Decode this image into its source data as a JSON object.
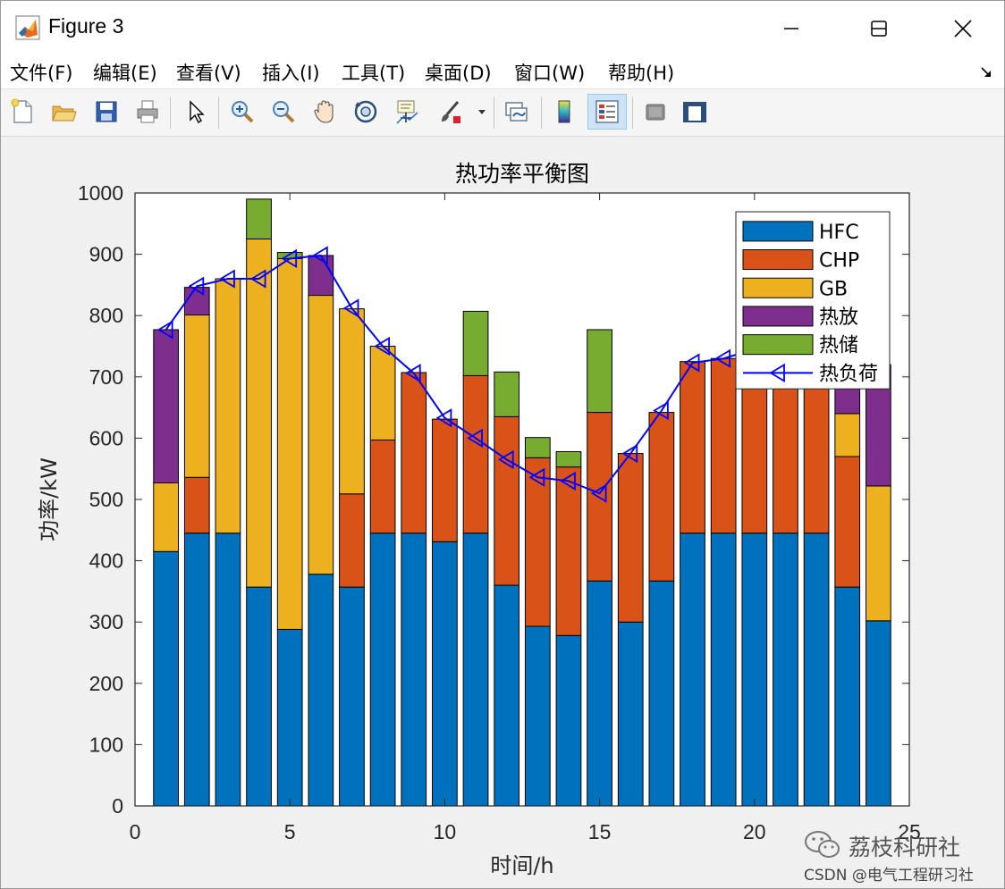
{
  "window": {
    "title": "Figure 3",
    "minimize_icon": "minimize-icon",
    "maximize_icon": "maximize-icon",
    "close_icon": "close-icon"
  },
  "menu": [
    "文件(F)",
    "编辑(E)",
    "查看(V)",
    "插入(I)",
    "工具(T)",
    "桌面(D)",
    "窗口(W)",
    "帮助(H)"
  ],
  "toolbar": {
    "icons": [
      "new-figure-icon",
      "open-file-icon",
      "save-icon",
      "print-icon",
      "pointer-icon",
      "zoom-in-icon",
      "zoom-out-icon",
      "pan-hand-icon",
      "rotate-3d-icon",
      "data-cursor-icon",
      "brush-icon",
      "link-plot-icon",
      "colorbar-icon",
      "legend-icon",
      "hide-plot-tools-icon",
      "show-plot-tools-icon"
    ],
    "active": "legend-icon"
  },
  "chart_data": {
    "type": "bar",
    "stacked": true,
    "title": "热功率平衡图",
    "xlabel": "时间/h",
    "ylabel": "功率/kW",
    "xlim": [
      0,
      25
    ],
    "ylim": [
      0,
      1000
    ],
    "xticks": [
      0,
      5,
      10,
      15,
      20,
      25
    ],
    "yticks": [
      0,
      100,
      200,
      300,
      400,
      500,
      600,
      700,
      800,
      900,
      1000
    ],
    "x": [
      1,
      2,
      3,
      4,
      5,
      6,
      7,
      8,
      9,
      10,
      11,
      12,
      13,
      14,
      15,
      16,
      17,
      18,
      19,
      20,
      21,
      22,
      23,
      24
    ],
    "series": [
      {
        "name": "HFC",
        "color": "#0072BD",
        "values": [
          415,
          445,
          445,
          357,
          288,
          378,
          357,
          445,
          445,
          431,
          445,
          360,
          293,
          278,
          367,
          300,
          367,
          445,
          445,
          445,
          445,
          445,
          357,
          302
        ]
      },
      {
        "name": "CHP",
        "color": "#D95319",
        "values": [
          0,
          91,
          0,
          0,
          0,
          0,
          152,
          152,
          262,
          200,
          257,
          275,
          275,
          275,
          275,
          275,
          275,
          280,
          285,
          292,
          283,
          271,
          213,
          0
        ]
      },
      {
        "name": "GB",
        "color": "#EDB120",
        "values": [
          112,
          265,
          415,
          568,
          605,
          455,
          302,
          153,
          0,
          0,
          0,
          0,
          0,
          0,
          0,
          0,
          0,
          0,
          0,
          0,
          0,
          0,
          70,
          220
        ]
      },
      {
        "name": "热放",
        "color": "#7E2F8E",
        "values": [
          250,
          45,
          0,
          0,
          0,
          65,
          0,
          0,
          0,
          0,
          0,
          0,
          0,
          0,
          0,
          0,
          0,
          0,
          0,
          0,
          0,
          0,
          100,
          198
        ]
      },
      {
        "name": "热储",
        "color": "#77AC30",
        "values": [
          0,
          0,
          0,
          65,
          10,
          0,
          0,
          0,
          0,
          0,
          105,
          73,
          33,
          25,
          135,
          0,
          0,
          0,
          0,
          0,
          0,
          0,
          0,
          0
        ]
      }
    ],
    "line": {
      "name": "热负荷",
      "color": "#0000FF",
      "marker": "left-triangle",
      "values": [
        777,
        848,
        860,
        860,
        893,
        898,
        812,
        750,
        706,
        633,
        600,
        565,
        536,
        530,
        510,
        575,
        645,
        723,
        730,
        745,
        740,
        735,
        700,
        740
      ]
    },
    "legend": {
      "location": "top-right"
    },
    "grid": false
  },
  "watermark": {
    "line1": "荔枝科研社",
    "line2": "CSDN @电气工程研习社",
    "icon": "wechat-icon"
  }
}
